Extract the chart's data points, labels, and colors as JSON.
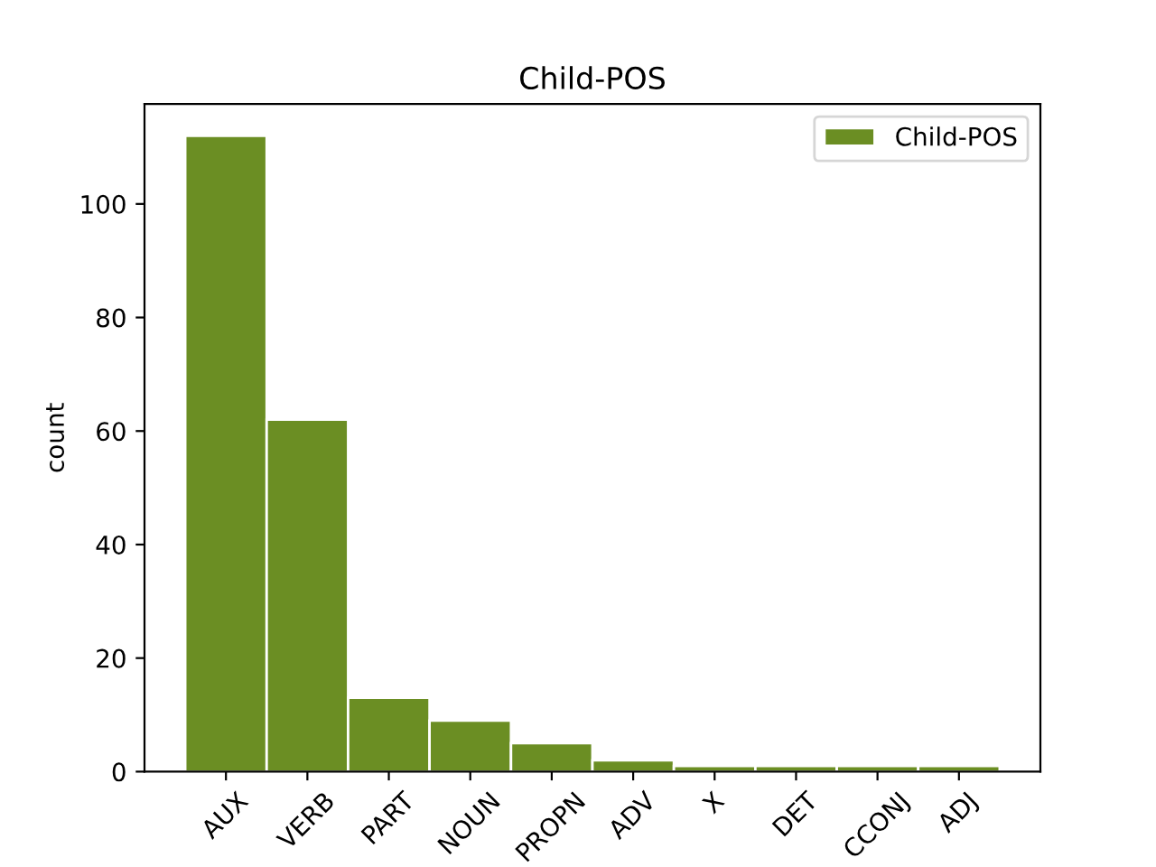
{
  "chart_data": {
    "type": "bar",
    "title": "Child-POS",
    "ylabel": "count",
    "categories": [
      "AUX",
      "VERB",
      "PART",
      "NOUN",
      "PROPN",
      "ADV",
      "X",
      "DET",
      "CCONJ",
      "ADJ"
    ],
    "series": [
      {
        "name": "Child-POS",
        "color": "#6b8e23",
        "values": [
          112,
          62,
          13,
          9,
          5,
          2,
          1,
          1,
          1,
          1
        ]
      }
    ],
    "ylim": [
      0,
      117.6
    ],
    "yticks": [
      0,
      20,
      40,
      60,
      80,
      100
    ],
    "grid": false,
    "legend": "top right"
  }
}
